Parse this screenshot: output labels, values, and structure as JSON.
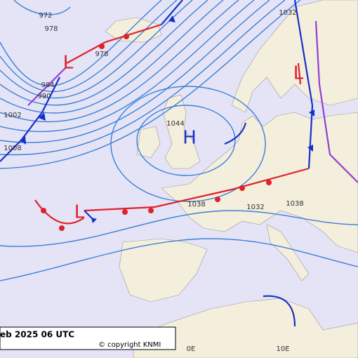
{
  "pressure_centers": [
    {
      "label": "H"
    },
    {
      "label": "L"
    },
    {
      "label": "L"
    },
    {
      "label": "L"
    }
  ],
  "isobar_labels": [
    "972",
    "978",
    "978",
    "984",
    "990",
    "1002",
    "1008",
    "1044",
    "1038",
    "1032",
    "1038",
    "1032"
  ],
  "meridian_labels": [
    "0E",
    "10E"
  ],
  "caption": {
    "date": "eb 2025 06 UTC",
    "copyright": "© copyright KNMI"
  }
}
